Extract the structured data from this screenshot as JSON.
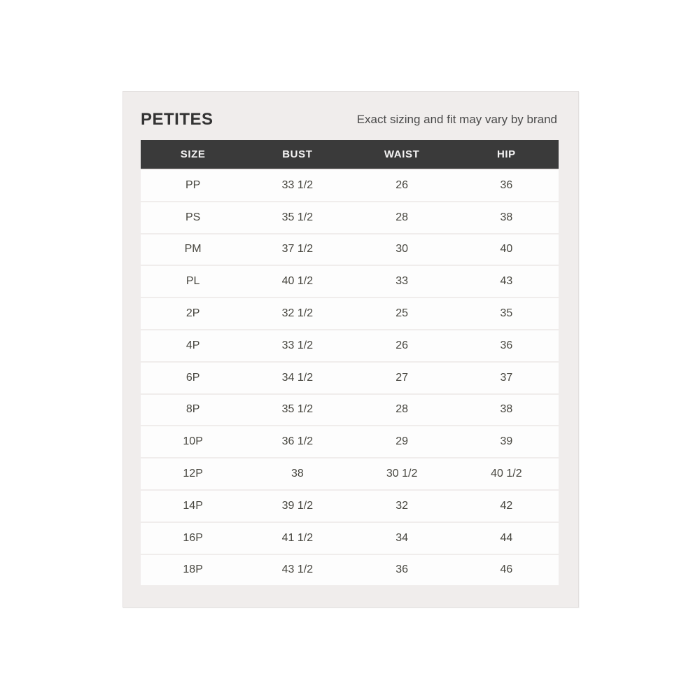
{
  "panel": {
    "title": "PETITES",
    "subtitle": "Exact sizing and fit may vary by brand"
  },
  "chart_data": {
    "type": "table",
    "title": "PETITES",
    "columns": [
      "SIZE",
      "BUST",
      "WAIST",
      "HIP"
    ],
    "rows": [
      [
        "PP",
        "33 1/2",
        "26",
        "36"
      ],
      [
        "PS",
        "35 1/2",
        "28",
        "38"
      ],
      [
        "PM",
        "37 1/2",
        "30",
        "40"
      ],
      [
        "PL",
        "40 1/2",
        "33",
        "43"
      ],
      [
        "2P",
        "32 1/2",
        "25",
        "35"
      ],
      [
        "4P",
        "33 1/2",
        "26",
        "36"
      ],
      [
        "6P",
        "34 1/2",
        "27",
        "37"
      ],
      [
        "8P",
        "35 1/2",
        "28",
        "38"
      ],
      [
        "10P",
        "36 1/2",
        "29",
        "39"
      ],
      [
        "12P",
        "38",
        "30 1/2",
        "40 1/2"
      ],
      [
        "14P",
        "39 1/2",
        "32",
        "42"
      ],
      [
        "16P",
        "41 1/2",
        "34",
        "44"
      ],
      [
        "18P",
        "43 1/2",
        "36",
        "46"
      ]
    ]
  },
  "colors": {
    "page_bg": "#ffffff",
    "panel_bg": "#f0edec",
    "panel_border": "#e2dfde",
    "header_bg": "#3a3a3a",
    "header_text": "#f5f4f4",
    "row_bg": "#fdfdfd",
    "row_text": "#47463f",
    "title_text": "#333333",
    "subtitle_text": "#4a4a4a"
  }
}
